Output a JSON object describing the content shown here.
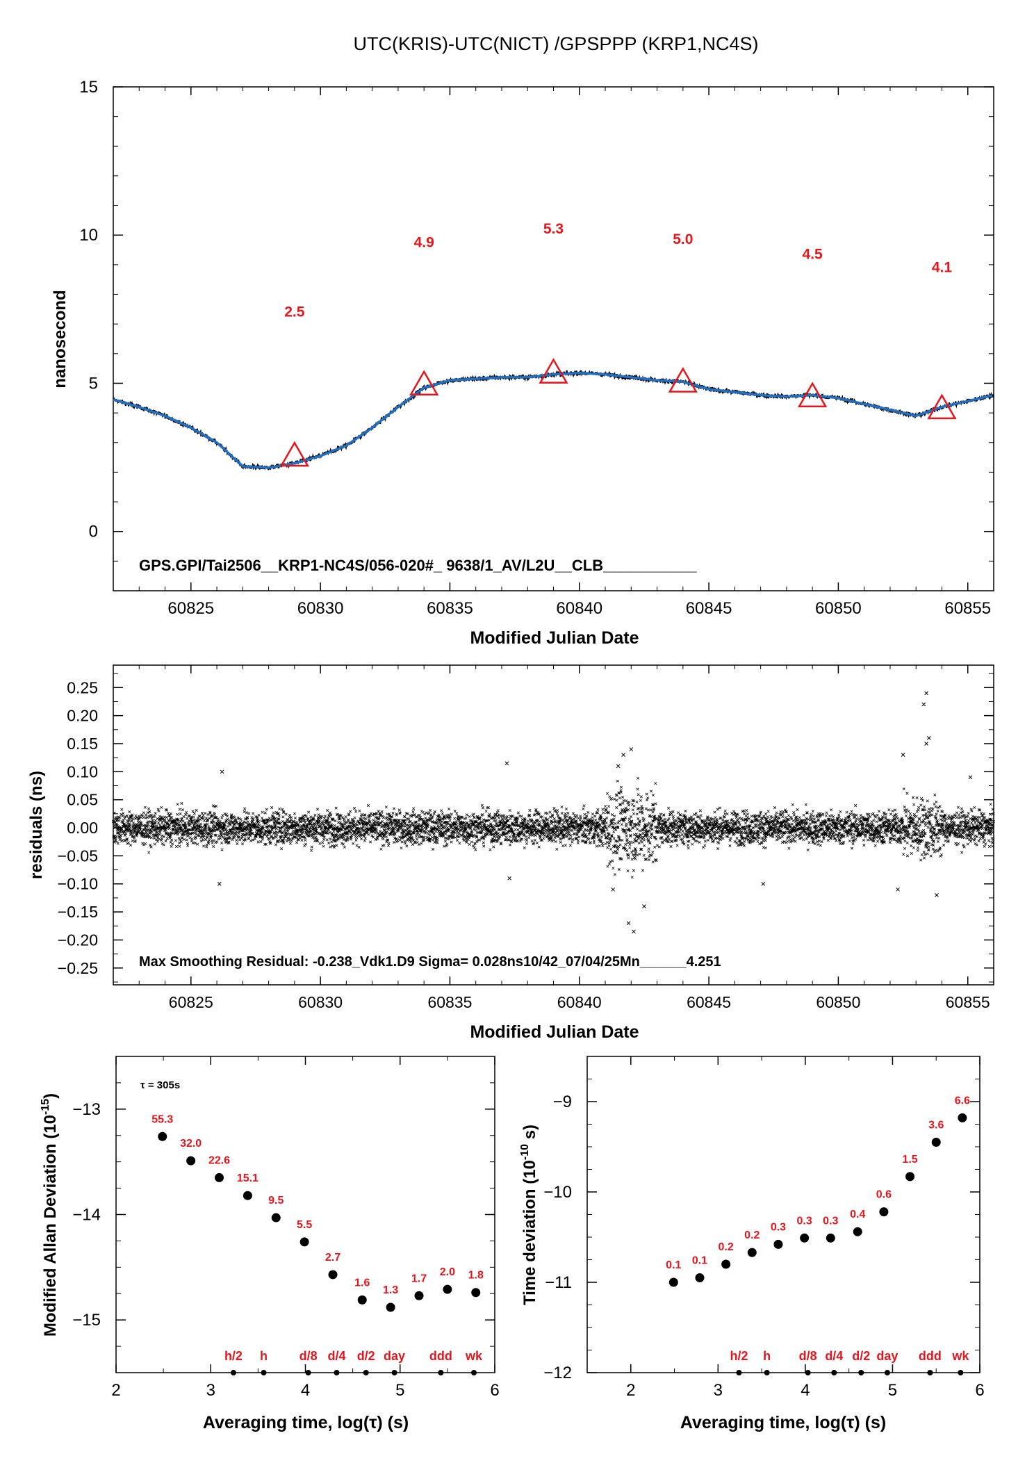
{
  "figure_title": "UTC(KRIS)-UTC(NICT)  /GPSPPP  (KRP1,NC4S)",
  "colors": {
    "axis": "#000000",
    "series": "#1f6fc5",
    "marker": "#e8141b",
    "annotation": "#e8141b",
    "points": "#000000"
  },
  "chart_data": [
    {
      "id": "main",
      "type": "line",
      "xlabel": "Modified Julian Date",
      "ylabel": "nanosecond",
      "xlim": [
        60822,
        60856
      ],
      "ylim": [
        -2,
        15
      ],
      "xticks": [
        60825,
        60830,
        60835,
        60840,
        60845,
        60850,
        60855
      ],
      "yticks": [
        0,
        5,
        10,
        15
      ],
      "series": [
        {
          "x": [
            60822,
            60823,
            60824,
            60825,
            60826,
            60827,
            60828,
            60829,
            60830,
            60831,
            60832,
            60833,
            60834,
            60835,
            60836,
            60837,
            60838,
            60839,
            60840,
            60841,
            60842,
            60843,
            60844,
            60845,
            60846,
            60847,
            60848,
            60849,
            60850,
            60851,
            60852,
            60853,
            60854,
            60855,
            60856
          ],
          "y": [
            4.45,
            4.2,
            3.9,
            3.5,
            3.0,
            2.2,
            2.15,
            2.3,
            2.55,
            2.9,
            3.5,
            4.2,
            4.85,
            5.1,
            5.15,
            5.2,
            5.2,
            5.3,
            5.35,
            5.3,
            5.2,
            5.1,
            5.05,
            4.8,
            4.7,
            4.6,
            4.55,
            4.6,
            4.5,
            4.3,
            4.1,
            3.9,
            4.2,
            4.4,
            4.6
          ]
        }
      ],
      "markers": [
        {
          "x": 60829,
          "y": 2.5
        },
        {
          "x": 60834,
          "y": 4.9
        },
        {
          "x": 60839,
          "y": 5.3
        },
        {
          "x": 60844,
          "y": 5.0
        },
        {
          "x": 60849,
          "y": 4.5
        },
        {
          "x": 60854,
          "y": 4.1
        }
      ],
      "labels": [
        {
          "x": 60829,
          "y": 7.25,
          "text": "2.5"
        },
        {
          "x": 60834,
          "y": 9.6,
          "text": "4.9"
        },
        {
          "x": 60839,
          "y": 10.05,
          "text": "5.3"
        },
        {
          "x": 60844,
          "y": 9.7,
          "text": "5.0"
        },
        {
          "x": 60849,
          "y": 9.2,
          "text": "4.5"
        },
        {
          "x": 60854,
          "y": 8.75,
          "text": "4.1"
        }
      ],
      "annotation": "GPS.GPI/Tai2506__KRP1-NC4S/056-020#_  9638/1_AV/L2U__CLB___________"
    },
    {
      "id": "residuals",
      "type": "scatter",
      "xlabel": "Modified Julian Date",
      "ylabel": "residuals (ns)",
      "xlim": [
        60822,
        60856
      ],
      "ylim": [
        -0.28,
        0.29
      ],
      "xticks": [
        60825,
        60830,
        60835,
        60840,
        60845,
        60850,
        60855
      ],
      "yticks": [
        0.25,
        0.2,
        0.15,
        0.1,
        0.05,
        0.0,
        -0.05,
        -0.1,
        -0.15,
        -0.2,
        -0.25
      ],
      "ytick_labels": [
        "0.25",
        "0.20",
        "0.15",
        "0.10",
        "0.05",
        "0.00",
        "−0.05",
        "−0.10",
        "−0.15",
        "−0.20",
        "−0.25"
      ],
      "sigma": 0.028,
      "max_residual": -0.238,
      "outliers": [
        {
          "x": 60842.1,
          "y": -0.185
        },
        {
          "x": 60842.0,
          "y": 0.14
        },
        {
          "x": 60841.7,
          "y": 0.13
        },
        {
          "x": 60841.9,
          "y": -0.17
        },
        {
          "x": 60853.4,
          "y": 0.24
        },
        {
          "x": 60853.3,
          "y": 0.22
        },
        {
          "x": 60853.5,
          "y": 0.16
        },
        {
          "x": 60853.4,
          "y": 0.15
        },
        {
          "x": 60852.3,
          "y": -0.11
        },
        {
          "x": 60852.5,
          "y": 0.13
        },
        {
          "x": 60826.1,
          "y": -0.1
        },
        {
          "x": 60826.2,
          "y": 0.1
        },
        {
          "x": 60837.2,
          "y": 0.115
        },
        {
          "x": 60837.3,
          "y": -0.09
        },
        {
          "x": 60841.3,
          "y": -0.11
        },
        {
          "x": 60842.5,
          "y": -0.14
        },
        {
          "x": 60841.5,
          "y": 0.11
        },
        {
          "x": 60847.1,
          "y": -0.1
        },
        {
          "x": 60853.8,
          "y": -0.12
        },
        {
          "x": 60855.1,
          "y": 0.09
        }
      ],
      "annotation": "Max Smoothing Residual: -0.238_Vdk1.D9  Sigma= 0.028ns10/42_07/04/25Mn______4.251"
    },
    {
      "id": "mdev",
      "type": "scatter",
      "xlabel": "Averaging time, log(τ) (s)",
      "ylabel": "Modified Allan Deviation (10",
      "ylabel_sup": "-15",
      "ylabel_end": ")",
      "xlim": [
        2,
        6
      ],
      "ylim": [
        -15.5,
        -12.5
      ],
      "xticks": [
        2,
        3,
        4,
        5,
        6
      ],
      "yticks": [
        -13,
        -14,
        -15
      ],
      "tau_note": "τ = 305s",
      "x": [
        2.49,
        2.79,
        3.09,
        3.39,
        3.69,
        3.99,
        4.29,
        4.6,
        4.9,
        5.2,
        5.5,
        5.8
      ],
      "y": [
        -13.26,
        -13.49,
        -13.65,
        -13.82,
        -14.03,
        -14.26,
        -14.57,
        -14.81,
        -14.88,
        -14.77,
        -14.71,
        -14.74
      ],
      "value_labels": [
        "55.3",
        "32.0",
        "22.6",
        "15.1",
        "9.5",
        "5.5",
        "2.7",
        "1.6",
        "1.3",
        "1.7",
        "2.0",
        "1.8"
      ],
      "time_marks": [
        {
          "x": 3.24,
          "text": "h/2"
        },
        {
          "x": 3.56,
          "text": "h"
        },
        {
          "x": 4.03,
          "text": "d/8"
        },
        {
          "x": 4.33,
          "text": "d/4"
        },
        {
          "x": 4.64,
          "text": "d/2"
        },
        {
          "x": 4.94,
          "text": "day"
        },
        {
          "x": 5.43,
          "text": "ddd"
        },
        {
          "x": 5.78,
          "text": "wk"
        }
      ]
    },
    {
      "id": "tdev",
      "type": "scatter",
      "xlabel": "Averaging time, log(τ) (s)",
      "ylabel": "Time deviation (10",
      "ylabel_sup": "-10",
      "ylabel_end": " s)",
      "xlim": [
        1.5,
        6
      ],
      "ylim": [
        -12,
        -8.5
      ],
      "xticks": [
        2,
        3,
        4,
        5,
        6
      ],
      "yticks": [
        -9,
        -10,
        -11,
        -12
      ],
      "x": [
        2.49,
        2.79,
        3.09,
        3.39,
        3.69,
        3.99,
        4.29,
        4.6,
        4.9,
        5.2,
        5.5,
        5.8
      ],
      "y": [
        -11.0,
        -10.95,
        -10.8,
        -10.67,
        -10.58,
        -10.51,
        -10.51,
        -10.44,
        -10.22,
        -9.83,
        -9.45,
        -9.18
      ],
      "value_labels": [
        "0.1",
        "0.1",
        "0.2",
        "0.2",
        "0.3",
        "0.3",
        "0.3",
        "0.4",
        "0.6",
        "1.5",
        "3.6",
        "6.6"
      ],
      "time_marks": [
        {
          "x": 3.24,
          "text": "h/2"
        },
        {
          "x": 3.56,
          "text": "h"
        },
        {
          "x": 4.03,
          "text": "d/8"
        },
        {
          "x": 4.33,
          "text": "d/4"
        },
        {
          "x": 4.64,
          "text": "d/2"
        },
        {
          "x": 4.94,
          "text": "day"
        },
        {
          "x": 5.43,
          "text": "ddd"
        },
        {
          "x": 5.78,
          "text": "wk"
        }
      ]
    }
  ]
}
